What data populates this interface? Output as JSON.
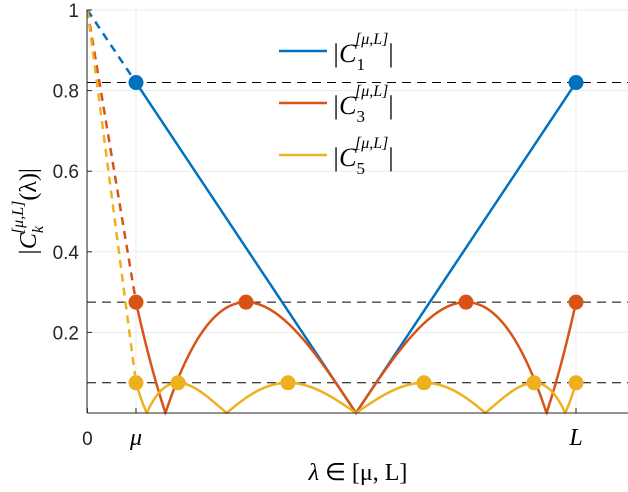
{
  "chart_data": {
    "type": "line",
    "title": "",
    "xlabel": "λ ∈ [μ, L]",
    "ylabel": "|C_k^[μ,L](λ)|",
    "xlim": [
      0,
      1
    ],
    "ylim": [
      0,
      1
    ],
    "mu": 0.09,
    "L": 0.905,
    "x_ticks": [
      {
        "value": 0,
        "label": "0"
      },
      {
        "value": 0.09,
        "label": "μ"
      },
      {
        "value": 0.905,
        "label": "L"
      }
    ],
    "y_ticks": [
      {
        "value": 0.2,
        "label": "0.2"
      },
      {
        "value": 0.4,
        "label": "0.4"
      },
      {
        "value": 0.6,
        "label": "0.6"
      },
      {
        "value": 0.8,
        "label": "0.8"
      },
      {
        "value": 1,
        "label": "1"
      }
    ],
    "grid": true,
    "legend_position": "upper center",
    "series": [
      {
        "name": "|C_1^[μ,L]|",
        "k": 1,
        "color": "#0072BD",
        "equioscillation_level": 0.82
      },
      {
        "name": "|C_3^[μ,L]|",
        "k": 3,
        "color": "#D95319",
        "equioscillation_level": 0.275
      },
      {
        "name": "|C_5^[μ,L]|",
        "k": 5,
        "color": "#EDB120",
        "equioscillation_level": 0.075
      }
    ],
    "reference_lines": [
      0.82,
      0.275,
      0.075
    ],
    "notes": "Solid curves on [μ, L], dashed extension from (0,1) to μ; filled markers at extremal (equioscillation) points"
  },
  "legend": {
    "items": [
      {
        "base": "|C",
        "sub": "1",
        "sup": "[μ,L]",
        "close": "|"
      },
      {
        "base": "|C",
        "sub": "3",
        "sup": "[μ,L]",
        "close": "|"
      },
      {
        "base": "|C",
        "sub": "5",
        "sup": "[μ,L]",
        "close": "|"
      }
    ]
  },
  "axes": {
    "x_label": {
      "lambda": "λ",
      "in": "∈",
      "interval": "[μ, L]"
    },
    "y_label": {
      "base": "|C",
      "sub": "k",
      "sup": "[μ,L]",
      "arg": "(λ)|"
    }
  }
}
